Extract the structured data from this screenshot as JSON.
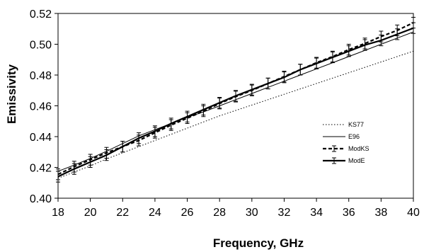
{
  "chart_data": {
    "type": "line",
    "xlabel": "Frequency, GHz",
    "ylabel": "Emissivity",
    "xlim": [
      18,
      40
    ],
    "ylim": [
      0.4,
      0.52
    ],
    "x_ticks": [
      "18",
      "20",
      "22",
      "24",
      "26",
      "28",
      "30",
      "32",
      "34",
      "36",
      "38",
      "40"
    ],
    "y_ticks": [
      "0.40",
      "0.42",
      "0.44",
      "0.46",
      "0.48",
      "0.50",
      "0.52"
    ],
    "grid": false,
    "legend_position": "right",
    "x": [
      18,
      19,
      20,
      21,
      22,
      23,
      24,
      25,
      26,
      27,
      28,
      29,
      30,
      31,
      32,
      33,
      34,
      35,
      36,
      37,
      38,
      39,
      40
    ],
    "series": [
      {
        "name": "KS77",
        "style": "dotted-thin",
        "color": "#000000",
        "values": [
          0.413,
          0.417,
          0.421,
          0.4255,
          0.4295,
          0.4335,
          0.4375,
          0.4415,
          0.4455,
          0.4495,
          0.4535,
          0.457,
          0.4605,
          0.464,
          0.4675,
          0.471,
          0.4745,
          0.478,
          0.4815,
          0.485,
          0.4885,
          0.492,
          0.4955
        ]
      },
      {
        "name": "E96",
        "style": "solid-thin",
        "color": "#000000",
        "values": [
          0.4175,
          0.4215,
          0.4258,
          0.4305,
          0.4355,
          0.4405,
          0.4445,
          0.4485,
          0.4525,
          0.456,
          0.46,
          0.464,
          0.468,
          0.472,
          0.476,
          0.48,
          0.484,
          0.488,
          0.492,
          0.496,
          0.5,
          0.504,
          0.508
        ]
      },
      {
        "name": "ModKS",
        "style": "dashed-thick-errorbars",
        "color": "#000000",
        "values": [
          0.4155,
          0.4205,
          0.425,
          0.4295,
          0.4335,
          0.4375,
          0.4425,
          0.4475,
          0.452,
          0.4565,
          0.4615,
          0.466,
          0.47,
          0.4745,
          0.479,
          0.4835,
          0.488,
          0.492,
          0.4965,
          0.5005,
          0.505,
          0.509,
          0.514
        ],
        "error": 0.0035
      },
      {
        "name": "ModE",
        "style": "solid-thick-errorbars",
        "color": "#000000",
        "values": [
          0.414,
          0.419,
          0.4235,
          0.428,
          0.4335,
          0.439,
          0.4435,
          0.4485,
          0.453,
          0.4575,
          0.462,
          0.4665,
          0.4705,
          0.4745,
          0.4785,
          0.4835,
          0.4875,
          0.4915,
          0.4955,
          0.4995,
          0.5025,
          0.5065,
          0.5105
        ],
        "error": 0.0035
      }
    ]
  }
}
